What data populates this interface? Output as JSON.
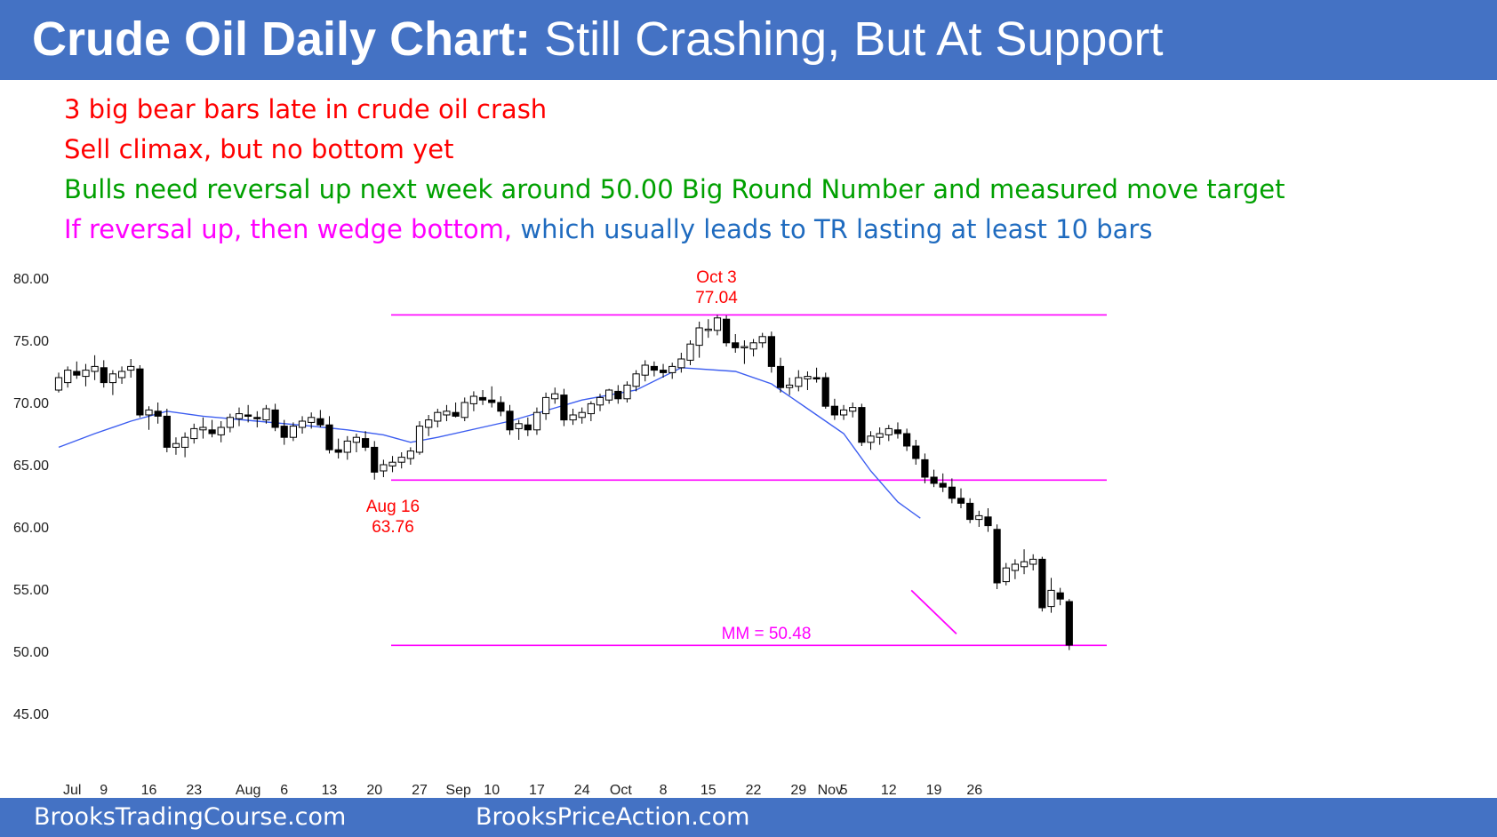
{
  "header": {
    "title_bold": "Crude Oil Daily Chart:",
    "title_rest": " Still Crashing, But At Support"
  },
  "notes": [
    {
      "text": "3 big bear bars late in crude oil crash",
      "color": "#ff0000"
    },
    {
      "text": "Sell climax, but no bottom yet",
      "color": "#ff0000"
    },
    {
      "text": "Bulls need reversal up next week around 50.00 Big Round Number and measured move target",
      "color": "#00a000"
    },
    {
      "text": "If reversal up, then wedge bottom,",
      "color": "#ff00ff"
    },
    {
      "text": " which usually leads to TR lasting at least 10 bars",
      "color": "#1f6bbf"
    }
  ],
  "footer": {
    "left": "BrooksTradingCourse.com",
    "right": "BrooksPriceAction.com"
  },
  "chart_data": {
    "type": "candlestick",
    "ylim": [
      41,
      82
    ],
    "y_ticks": [
      "80.00",
      "75.00",
      "70.00",
      "65.00",
      "60.00",
      "55.00",
      "50.00",
      "45.00"
    ],
    "x_tick_labels": [
      "Jul",
      "9",
      "16",
      "23",
      "Aug",
      "6",
      "13",
      "20",
      "27",
      "Sep",
      "10",
      "17",
      "24",
      "Oct",
      "8",
      "15",
      "22",
      "29",
      "Nov",
      "5",
      "12",
      "19",
      "26"
    ],
    "x_tick_bar_index": [
      1.5,
      5,
      10,
      15,
      21,
      25,
      30,
      35,
      40,
      44.3,
      48,
      53,
      58,
      62.3,
      67,
      72,
      77,
      82,
      85.5,
      87,
      92,
      97,
      101.5
    ],
    "candles": [
      {
        "o": 71.0,
        "h": 72.4,
        "l": 70.8,
        "c": 72.0
      },
      {
        "o": 71.6,
        "h": 72.9,
        "l": 71.2,
        "c": 72.6
      },
      {
        "o": 72.5,
        "h": 73.3,
        "l": 71.9,
        "c": 72.2
      },
      {
        "o": 72.1,
        "h": 73.1,
        "l": 71.3,
        "c": 72.6
      },
      {
        "o": 72.5,
        "h": 73.8,
        "l": 71.8,
        "c": 72.9
      },
      {
        "o": 72.8,
        "h": 73.4,
        "l": 71.2,
        "c": 71.6
      },
      {
        "o": 71.6,
        "h": 72.6,
        "l": 70.6,
        "c": 72.3
      },
      {
        "o": 72.0,
        "h": 72.9,
        "l": 71.5,
        "c": 72.5
      },
      {
        "o": 72.6,
        "h": 73.5,
        "l": 72.0,
        "c": 72.9
      },
      {
        "o": 72.7,
        "h": 73.0,
        "l": 68.8,
        "c": 69.0
      },
      {
        "o": 69.0,
        "h": 69.7,
        "l": 67.8,
        "c": 69.4
      },
      {
        "o": 69.3,
        "h": 70.0,
        "l": 68.3,
        "c": 68.9
      },
      {
        "o": 68.9,
        "h": 69.5,
        "l": 66.0,
        "c": 66.4
      },
      {
        "o": 66.4,
        "h": 67.2,
        "l": 65.8,
        "c": 66.7
      },
      {
        "o": 66.4,
        "h": 67.6,
        "l": 65.6,
        "c": 67.2
      },
      {
        "o": 67.1,
        "h": 68.3,
        "l": 66.7,
        "c": 67.9
      },
      {
        "o": 67.8,
        "h": 68.8,
        "l": 67.1,
        "c": 68.0
      },
      {
        "o": 67.8,
        "h": 68.6,
        "l": 67.2,
        "c": 67.5
      },
      {
        "o": 67.4,
        "h": 68.5,
        "l": 66.8,
        "c": 68.0
      },
      {
        "o": 68.0,
        "h": 69.1,
        "l": 67.6,
        "c": 68.8
      },
      {
        "o": 68.7,
        "h": 69.6,
        "l": 68.1,
        "c": 69.1
      },
      {
        "o": 69.0,
        "h": 69.8,
        "l": 68.4,
        "c": 68.9
      },
      {
        "o": 68.8,
        "h": 69.3,
        "l": 68.0,
        "c": 68.7
      },
      {
        "o": 68.6,
        "h": 69.8,
        "l": 68.3,
        "c": 69.5
      },
      {
        "o": 69.4,
        "h": 69.9,
        "l": 67.7,
        "c": 68.0
      },
      {
        "o": 68.1,
        "h": 68.6,
        "l": 66.6,
        "c": 67.2
      },
      {
        "o": 67.2,
        "h": 68.4,
        "l": 66.9,
        "c": 68.1
      },
      {
        "o": 68.0,
        "h": 68.9,
        "l": 67.5,
        "c": 68.5
      },
      {
        "o": 68.4,
        "h": 69.2,
        "l": 67.9,
        "c": 68.8
      },
      {
        "o": 68.7,
        "h": 69.4,
        "l": 68.0,
        "c": 68.2
      },
      {
        "o": 68.2,
        "h": 68.9,
        "l": 65.9,
        "c": 66.2
      },
      {
        "o": 66.2,
        "h": 67.1,
        "l": 65.5,
        "c": 66.0
      },
      {
        "o": 66.0,
        "h": 67.3,
        "l": 65.4,
        "c": 66.9
      },
      {
        "o": 66.8,
        "h": 67.5,
        "l": 66.0,
        "c": 67.2
      },
      {
        "o": 67.1,
        "h": 67.7,
        "l": 66.1,
        "c": 66.4
      },
      {
        "o": 66.4,
        "h": 66.9,
        "l": 63.8,
        "c": 64.4
      },
      {
        "o": 64.5,
        "h": 65.4,
        "l": 64.0,
        "c": 65.0
      },
      {
        "o": 64.9,
        "h": 65.7,
        "l": 64.4,
        "c": 65.2
      },
      {
        "o": 65.2,
        "h": 66.0,
        "l": 64.7,
        "c": 65.6
      },
      {
        "o": 65.5,
        "h": 66.4,
        "l": 65.0,
        "c": 66.1
      },
      {
        "o": 66.0,
        "h": 68.5,
        "l": 65.8,
        "c": 68.1
      },
      {
        "o": 68.0,
        "h": 69.0,
        "l": 67.3,
        "c": 68.6
      },
      {
        "o": 68.5,
        "h": 69.5,
        "l": 68.0,
        "c": 69.2
      },
      {
        "o": 69.0,
        "h": 69.8,
        "l": 68.5,
        "c": 69.3
      },
      {
        "o": 69.2,
        "h": 70.0,
        "l": 68.8,
        "c": 68.9
      },
      {
        "o": 68.8,
        "h": 70.4,
        "l": 68.5,
        "c": 70.0
      },
      {
        "o": 69.9,
        "h": 70.9,
        "l": 69.3,
        "c": 70.5
      },
      {
        "o": 70.4,
        "h": 71.0,
        "l": 69.8,
        "c": 70.2
      },
      {
        "o": 70.2,
        "h": 71.3,
        "l": 69.6,
        "c": 70.0
      },
      {
        "o": 70.0,
        "h": 70.5,
        "l": 68.9,
        "c": 69.3
      },
      {
        "o": 69.3,
        "h": 69.8,
        "l": 67.4,
        "c": 67.8
      },
      {
        "o": 67.9,
        "h": 68.6,
        "l": 67.0,
        "c": 68.3
      },
      {
        "o": 68.2,
        "h": 68.8,
        "l": 67.3,
        "c": 67.8
      },
      {
        "o": 67.8,
        "h": 69.6,
        "l": 67.4,
        "c": 69.2
      },
      {
        "o": 69.1,
        "h": 70.8,
        "l": 68.6,
        "c": 70.4
      },
      {
        "o": 70.3,
        "h": 71.2,
        "l": 69.9,
        "c": 70.7
      },
      {
        "o": 70.6,
        "h": 71.1,
        "l": 68.1,
        "c": 68.6
      },
      {
        "o": 68.6,
        "h": 69.5,
        "l": 68.2,
        "c": 69.0
      },
      {
        "o": 68.8,
        "h": 69.6,
        "l": 68.3,
        "c": 69.2
      },
      {
        "o": 69.1,
        "h": 70.1,
        "l": 68.5,
        "c": 69.9
      },
      {
        "o": 69.8,
        "h": 70.7,
        "l": 69.3,
        "c": 70.4
      },
      {
        "o": 70.2,
        "h": 71.1,
        "l": 69.9,
        "c": 71.0
      },
      {
        "o": 70.9,
        "h": 71.4,
        "l": 69.9,
        "c": 70.3
      },
      {
        "o": 70.3,
        "h": 71.7,
        "l": 70.0,
        "c": 71.4
      },
      {
        "o": 71.3,
        "h": 72.6,
        "l": 70.9,
        "c": 72.3
      },
      {
        "o": 72.2,
        "h": 73.4,
        "l": 71.7,
        "c": 73.0
      },
      {
        "o": 72.9,
        "h": 73.3,
        "l": 72.1,
        "c": 72.6
      },
      {
        "o": 72.6,
        "h": 73.1,
        "l": 72.0,
        "c": 72.4
      },
      {
        "o": 72.4,
        "h": 73.2,
        "l": 71.9,
        "c": 72.9
      },
      {
        "o": 72.8,
        "h": 74.0,
        "l": 72.4,
        "c": 73.5
      },
      {
        "o": 73.4,
        "h": 75.0,
        "l": 73.0,
        "c": 74.7
      },
      {
        "o": 74.6,
        "h": 76.5,
        "l": 73.6,
        "c": 76.0
      },
      {
        "o": 75.9,
        "h": 76.7,
        "l": 75.2,
        "c": 75.9
      },
      {
        "o": 75.8,
        "h": 77.04,
        "l": 75.4,
        "c": 76.8
      },
      {
        "o": 76.7,
        "h": 77.0,
        "l": 74.5,
        "c": 74.8
      },
      {
        "o": 74.8,
        "h": 75.5,
        "l": 74.0,
        "c": 74.4
      },
      {
        "o": 74.4,
        "h": 75.0,
        "l": 73.1,
        "c": 74.5
      },
      {
        "o": 74.3,
        "h": 75.1,
        "l": 73.7,
        "c": 74.8
      },
      {
        "o": 74.8,
        "h": 75.6,
        "l": 74.4,
        "c": 75.3
      },
      {
        "o": 75.3,
        "h": 75.7,
        "l": 72.4,
        "c": 72.9
      },
      {
        "o": 72.9,
        "h": 73.6,
        "l": 70.8,
        "c": 71.2
      },
      {
        "o": 71.2,
        "h": 72.0,
        "l": 70.6,
        "c": 71.4
      },
      {
        "o": 71.3,
        "h": 72.6,
        "l": 70.9,
        "c": 72.0
      },
      {
        "o": 71.9,
        "h": 72.5,
        "l": 71.0,
        "c": 72.1
      },
      {
        "o": 72.0,
        "h": 72.8,
        "l": 71.6,
        "c": 71.9
      },
      {
        "o": 72.0,
        "h": 72.4,
        "l": 69.5,
        "c": 69.7
      },
      {
        "o": 69.7,
        "h": 70.3,
        "l": 68.6,
        "c": 69.0
      },
      {
        "o": 69.0,
        "h": 69.8,
        "l": 68.6,
        "c": 69.4
      },
      {
        "o": 69.3,
        "h": 70.0,
        "l": 68.8,
        "c": 69.6
      },
      {
        "o": 69.6,
        "h": 69.9,
        "l": 66.5,
        "c": 66.8
      },
      {
        "o": 66.8,
        "h": 67.7,
        "l": 66.2,
        "c": 67.3
      },
      {
        "o": 67.2,
        "h": 68.0,
        "l": 66.6,
        "c": 67.5
      },
      {
        "o": 67.4,
        "h": 68.2,
        "l": 66.9,
        "c": 67.9
      },
      {
        "o": 67.8,
        "h": 68.4,
        "l": 67.1,
        "c": 67.5
      },
      {
        "o": 67.5,
        "h": 67.9,
        "l": 66.1,
        "c": 66.5
      },
      {
        "o": 66.5,
        "h": 67.0,
        "l": 65.0,
        "c": 65.5
      },
      {
        "o": 65.4,
        "h": 65.9,
        "l": 63.5,
        "c": 64.0
      },
      {
        "o": 64.0,
        "h": 64.6,
        "l": 63.2,
        "c": 63.5
      },
      {
        "o": 63.5,
        "h": 64.3,
        "l": 62.8,
        "c": 63.2
      },
      {
        "o": 63.2,
        "h": 63.9,
        "l": 61.9,
        "c": 62.3
      },
      {
        "o": 62.3,
        "h": 63.1,
        "l": 61.5,
        "c": 61.9
      },
      {
        "o": 61.9,
        "h": 62.3,
        "l": 60.3,
        "c": 60.6
      },
      {
        "o": 60.6,
        "h": 61.3,
        "l": 60.0,
        "c": 60.9
      },
      {
        "o": 60.8,
        "h": 61.5,
        "l": 59.6,
        "c": 60.1
      },
      {
        "o": 59.8,
        "h": 60.2,
        "l": 55.0,
        "c": 55.5
      },
      {
        "o": 55.6,
        "h": 57.1,
        "l": 55.3,
        "c": 56.7
      },
      {
        "o": 56.5,
        "h": 57.4,
        "l": 55.8,
        "c": 57.0
      },
      {
        "o": 56.8,
        "h": 58.2,
        "l": 56.2,
        "c": 57.2
      },
      {
        "o": 57.0,
        "h": 57.8,
        "l": 56.5,
        "c": 57.4
      },
      {
        "o": 57.4,
        "h": 57.6,
        "l": 53.2,
        "c": 53.5
      },
      {
        "o": 53.6,
        "h": 55.9,
        "l": 53.1,
        "c": 54.9
      },
      {
        "o": 54.7,
        "h": 55.1,
        "l": 53.7,
        "c": 54.2
      },
      {
        "o": 54.0,
        "h": 54.2,
        "l": 50.1,
        "c": 50.5
      }
    ],
    "ema_20": [
      66.4,
      67.5,
      68.5,
      69.3,
      68.9,
      68.5,
      68.1,
      67.8,
      67.4,
      66.8,
      67.2,
      68.5,
      70.2,
      71.0,
      72.8,
      72.5,
      71.5,
      69.5,
      67.5,
      64.5,
      62.0,
      60.7
    ],
    "ema_bar_index": [
      0,
      4,
      8,
      12,
      16,
      22,
      28,
      32,
      36,
      39,
      42,
      50,
      58,
      64,
      69,
      75,
      79,
      83,
      87,
      90,
      93,
      95.5
    ],
    "annotations": [
      {
        "label_top": "Oct 3",
        "label_bottom": "77.04",
        "y": 77.04,
        "color": "#ff0000"
      },
      {
        "label_top": "Aug 16",
        "label_bottom": "63.76",
        "y": 63.76,
        "color": "#ff0000"
      },
      {
        "label": "MM = 50.48",
        "y": 50.48,
        "color": "#ff00ff"
      }
    ],
    "horizontal_lines": [
      77.04,
      63.76,
      50.48
    ],
    "wedge_line": {
      "from_bar": 94.5,
      "from_y": 54.9,
      "to_bar": 99.5,
      "to_y": 51.4
    },
    "colors": {
      "bear": "#000000",
      "bull": "#ffffff",
      "ema": "#3d5ef0",
      "hline": "#ff00ff"
    }
  }
}
